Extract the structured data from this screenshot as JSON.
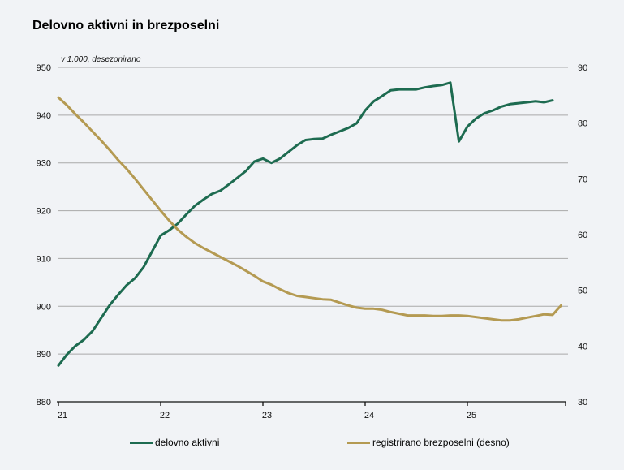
{
  "page": {
    "background": "#f1f3f6"
  },
  "header": {
    "title": "Delovno aktivni in brezposelni"
  },
  "chart_data": {
    "type": "line",
    "title": "Delovno aktivni in brezposelni",
    "subtitle": "v 1.000, desezonirano",
    "grid": "horizontal",
    "legend_position": "bottom",
    "x_tick_labels": [
      "21",
      "22",
      "23",
      "24",
      "25"
    ],
    "x_unit": "year (monthly points starting January 2021)",
    "left_axis": {
      "min": 880,
      "max": 950,
      "ticks": [
        950,
        940,
        930,
        920,
        910,
        900,
        890,
        880
      ]
    },
    "right_axis": {
      "min": 30,
      "max": 90,
      "ticks": [
        90,
        80,
        70,
        60,
        50,
        40,
        30
      ]
    },
    "colors": {
      "employed": "#1d6b50",
      "unemployed": "#b49a52",
      "gridline": "#a9a9a9",
      "axis": "#111111"
    },
    "series": [
      {
        "name": "delovno aktivni",
        "axis": "left",
        "color": "#1d6b50",
        "values": [
          887.6,
          889.9,
          891.7,
          893.0,
          894.8,
          897.5,
          900.2,
          902.4,
          904.4,
          905.9,
          908.2,
          911.5,
          914.8,
          915.9,
          917.3,
          919.2,
          921.0,
          922.3,
          923.5,
          924.2,
          925.5,
          926.9,
          928.3,
          930.3,
          930.9,
          930.0,
          930.9,
          932.3,
          933.7,
          934.8,
          935.0,
          935.1,
          935.9,
          936.6,
          937.3,
          938.3,
          941.0,
          942.9,
          944.0,
          945.2,
          945.4,
          945.4,
          945.4,
          945.8,
          946.1,
          946.3,
          946.8,
          934.5,
          937.6,
          939.3,
          940.4,
          941.0,
          941.8,
          942.3,
          942.5,
          942.7,
          942.9,
          942.7,
          943.1
        ]
      },
      {
        "name": "registrirano brezposelni (desno)",
        "axis": "right",
        "color": "#b49a52",
        "values": [
          84.6,
          83.2,
          81.6,
          80.1,
          78.5,
          76.9,
          75.2,
          73.4,
          71.8,
          70.0,
          68.1,
          66.2,
          64.3,
          62.5,
          60.9,
          59.6,
          58.5,
          57.6,
          56.8,
          56.0,
          55.2,
          54.4,
          53.5,
          52.6,
          51.6,
          51.0,
          50.2,
          49.5,
          49.0,
          48.8,
          48.6,
          48.4,
          48.3,
          47.8,
          47.3,
          46.9,
          46.7,
          46.7,
          46.5,
          46.1,
          45.8,
          45.5,
          45.5,
          45.5,
          45.4,
          45.4,
          45.5,
          45.5,
          45.4,
          45.2,
          45.0,
          44.8,
          44.6,
          44.6,
          44.8,
          45.1,
          45.4,
          45.7,
          45.6,
          47.3
        ]
      }
    ]
  },
  "legend": {
    "items": [
      {
        "label": "delovno aktivni",
        "color": "#1d6b50"
      },
      {
        "label": "registrirano brezposelni (desno)",
        "color": "#b49a52"
      }
    ]
  }
}
